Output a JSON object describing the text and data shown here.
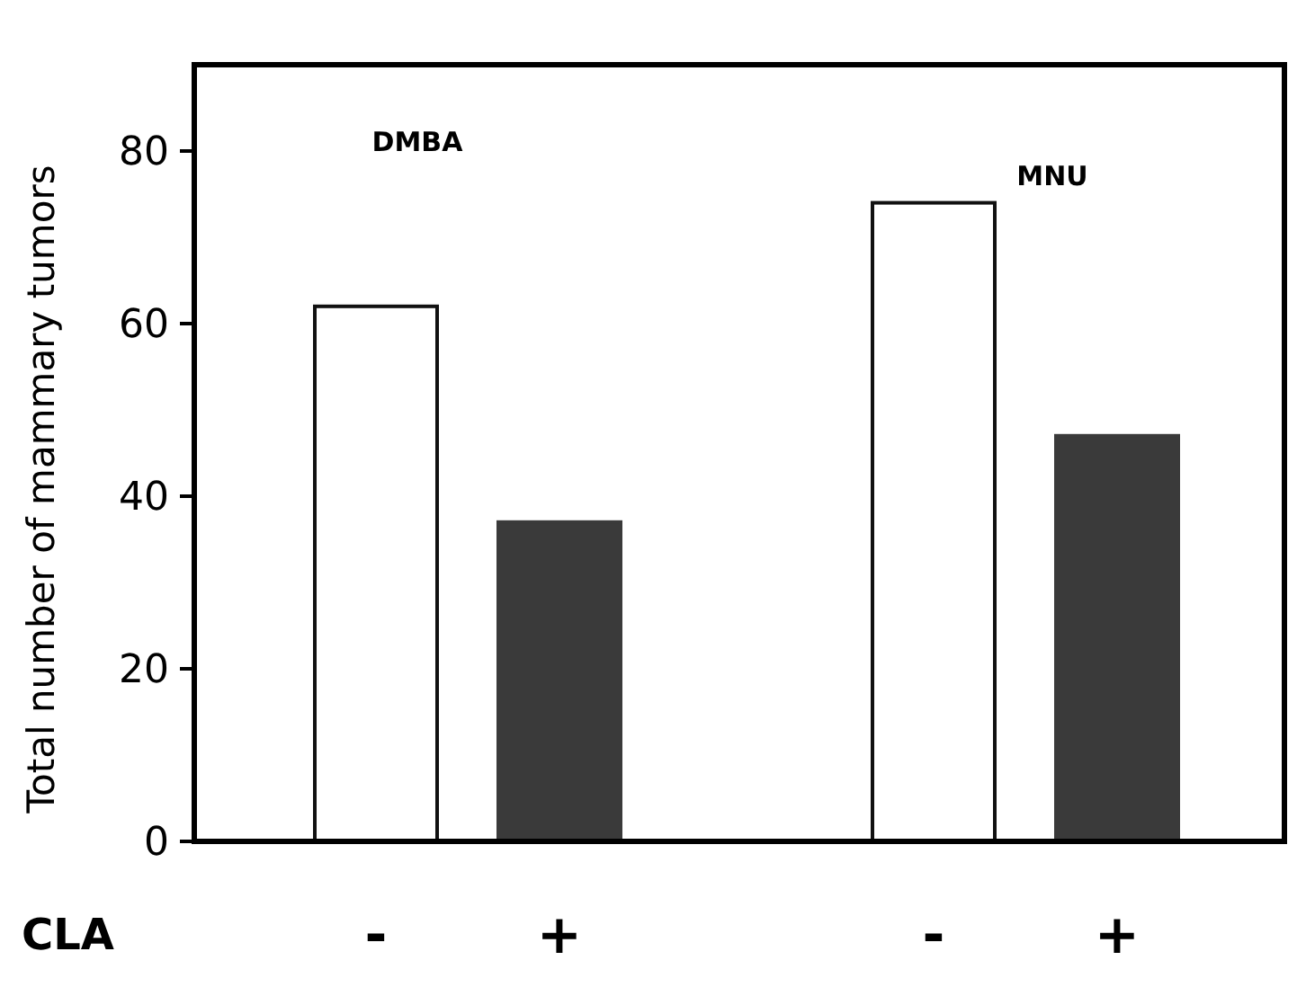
{
  "chart_data": {
    "type": "bar",
    "ylabel": "Total number of mammary tumors",
    "xlabel": "CLA",
    "categories": [
      "-",
      "+",
      "-",
      "+"
    ],
    "values": [
      62,
      37,
      74,
      47
    ],
    "colors": [
      "#ffffff",
      "#3a3a3a",
      "#ffffff",
      "#3a3a3a"
    ],
    "ylim": [
      0,
      90
    ],
    "yticks": [
      0,
      20,
      40,
      60,
      80
    ],
    "grid": false,
    "annotations": [
      "DMBA",
      "MNU"
    ]
  }
}
